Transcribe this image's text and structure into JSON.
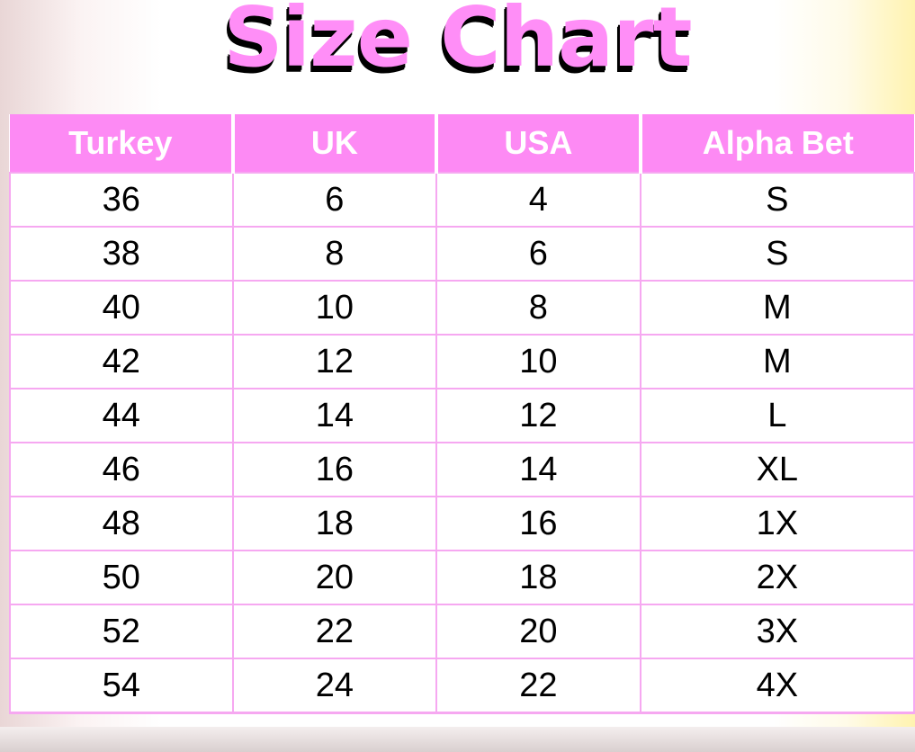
{
  "title": "Size Chart",
  "colors": {
    "header_bg": "#fd8af4",
    "title": "#ff8ef7",
    "grid": "#f6a8f1"
  },
  "chart_data": {
    "type": "table",
    "title": "Size Chart",
    "columns": [
      "Turkey",
      "UK",
      "USA",
      "Alpha Bet"
    ],
    "rows": [
      [
        "36",
        "6",
        "4",
        "S"
      ],
      [
        "38",
        "8",
        "6",
        "S"
      ],
      [
        "40",
        "10",
        "8",
        "M"
      ],
      [
        "42",
        "12",
        "10",
        "M"
      ],
      [
        "44",
        "14",
        "12",
        "L"
      ],
      [
        "46",
        "16",
        "14",
        "XL"
      ],
      [
        "48",
        "18",
        "16",
        "1X"
      ],
      [
        "50",
        "20",
        "18",
        "2X"
      ],
      [
        "52",
        "22",
        "20",
        "3X"
      ],
      [
        "54",
        "24",
        "22",
        "4X"
      ]
    ]
  }
}
